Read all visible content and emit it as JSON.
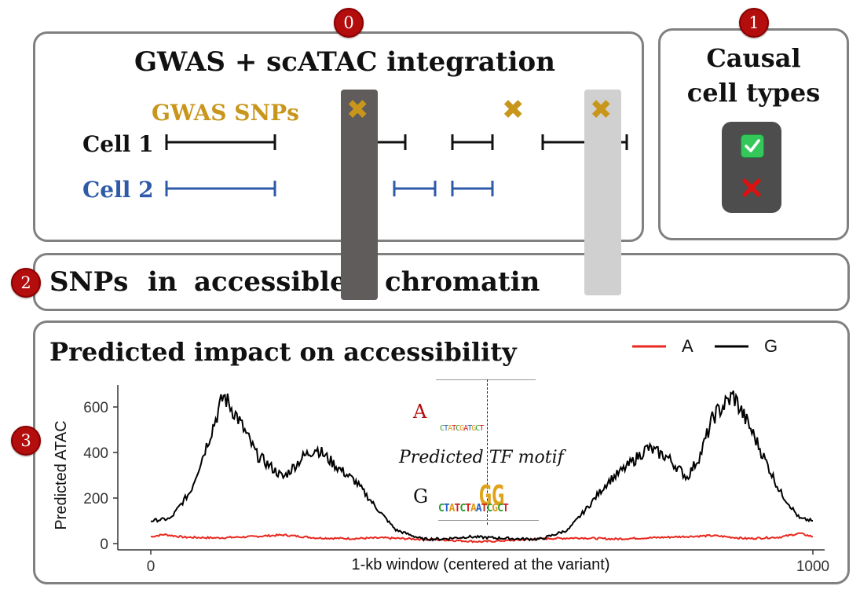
{
  "badges": [
    "0",
    "1",
    "2",
    "3"
  ],
  "panel0": {
    "title": "GWAS + scATAC integration",
    "gwas_label": "GWAS SNPs",
    "cell1_label": "Cell 1",
    "cell2_label": "Cell 2"
  },
  "panel1": {
    "title_line1": "Causal",
    "title_line2": "cell types",
    "check_icon": "check-mark-icon",
    "cross_icon": "red-x-icon"
  },
  "panel2": {
    "word1": "SNPs",
    "word2": "in",
    "word3": "accessible",
    "word4": "chromatin"
  },
  "panel3": {
    "title": "Predicted impact on accessibility",
    "motif_label": "Predicted TF motif",
    "allele_a": "A",
    "allele_g": "G"
  },
  "colors": {
    "gwas": "#c8961a",
    "cell1": "#111111",
    "cell2": "#2e5aa8",
    "allele_a_line": "#e8281e",
    "allele_g_line": "#000000",
    "dark_bar": "#5f5c5b",
    "light_bar": "#d0d0d0",
    "badge": "#b30d0d"
  },
  "chart_data": {
    "type": "line",
    "xlabel": "1-kb window (centered at the variant)",
    "ylabel": "Predicted ATAC",
    "xlim": [
      0,
      1000
    ],
    "ylim": [
      0,
      690
    ],
    "x_ticks": [
      "0",
      "1000"
    ],
    "y_ticks": [
      "0",
      "200",
      "400",
      "600"
    ],
    "legend_position": "top-right",
    "series": [
      {
        "name": "A",
        "x": [
          0,
          20,
          50,
          100,
          150,
          200,
          250,
          300,
          350,
          400,
          450,
          500,
          550,
          600,
          650,
          700,
          750,
          800,
          850,
          900,
          950,
          980,
          1000
        ],
        "y": [
          30,
          40,
          28,
          25,
          30,
          38,
          25,
          22,
          25,
          20,
          15,
          8,
          15,
          22,
          25,
          20,
          25,
          30,
          35,
          22,
          28,
          45,
          30
        ]
      },
      {
        "name": "G",
        "x": [
          0,
          30,
          60,
          90,
          110,
          130,
          160,
          200,
          230,
          250,
          280,
          310,
          340,
          370,
          410,
          440,
          480,
          520,
          560,
          590,
          630,
          660,
          690,
          720,
          750,
          780,
          810,
          830,
          850,
          880,
          910,
          950,
          980,
          1000
        ],
        "y": [
          100,
          110,
          230,
          480,
          650,
          560,
          390,
          290,
          380,
          420,
          340,
          270,
          160,
          60,
          20,
          20,
          30,
          25,
          20,
          20,
          60,
          160,
          270,
          340,
          420,
          380,
          290,
          390,
          560,
          650,
          480,
          230,
          110,
          100
        ]
      }
    ]
  }
}
